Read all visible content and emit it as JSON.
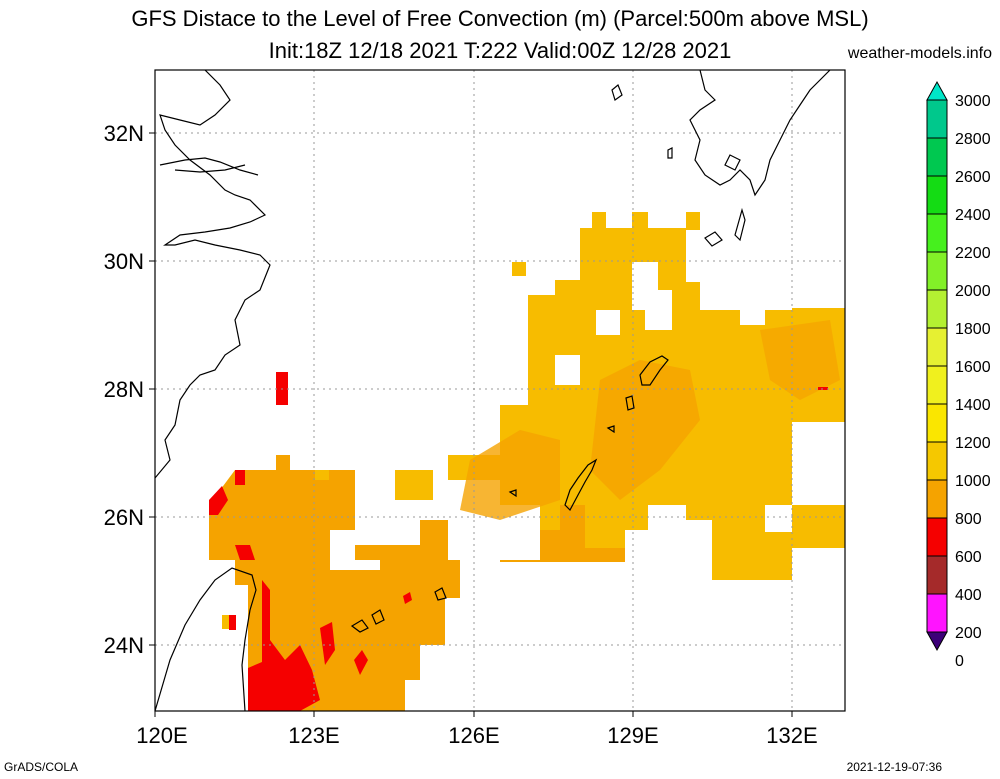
{
  "header": {
    "title_line1": "GFS Distace to the Level of Free Convection (m) (Parcel:500m above MSL)",
    "title_line2": "Init:18Z 12/18 2021 T:222 Valid:00Z 12/28 2021",
    "site": "weather-models.info"
  },
  "footer": {
    "left": "GrADS/COLA",
    "right": "2021-12-19-07:36"
  },
  "map": {
    "lon_labels": [
      "120E",
      "123E",
      "126E",
      "129E",
      "132E"
    ],
    "lat_labels": [
      "32N",
      "30N",
      "28N",
      "26N",
      "24N"
    ],
    "colors": {
      "orange": "#F5A300",
      "light_orange": "#F7BC00",
      "red": "#F50000",
      "coast": "#000000",
      "grid": "#999999"
    }
  },
  "colorbar": {
    "labels": [
      "3000",
      "2800",
      "2600",
      "2400",
      "2200",
      "2000",
      "1800",
      "1600",
      "1400",
      "1200",
      "1000",
      "800",
      "600",
      "400",
      "200",
      "0"
    ],
    "colors": [
      "#00E6C8",
      "#00C88C",
      "#00C850",
      "#14DC14",
      "#46F01E",
      "#82F028",
      "#B4F032",
      "#E6F032",
      "#F0F01E",
      "#FAE600",
      "#F5C800",
      "#F5A300",
      "#F50000",
      "#A52A2A",
      "#FF14FF",
      "#3C0078"
    ]
  }
}
